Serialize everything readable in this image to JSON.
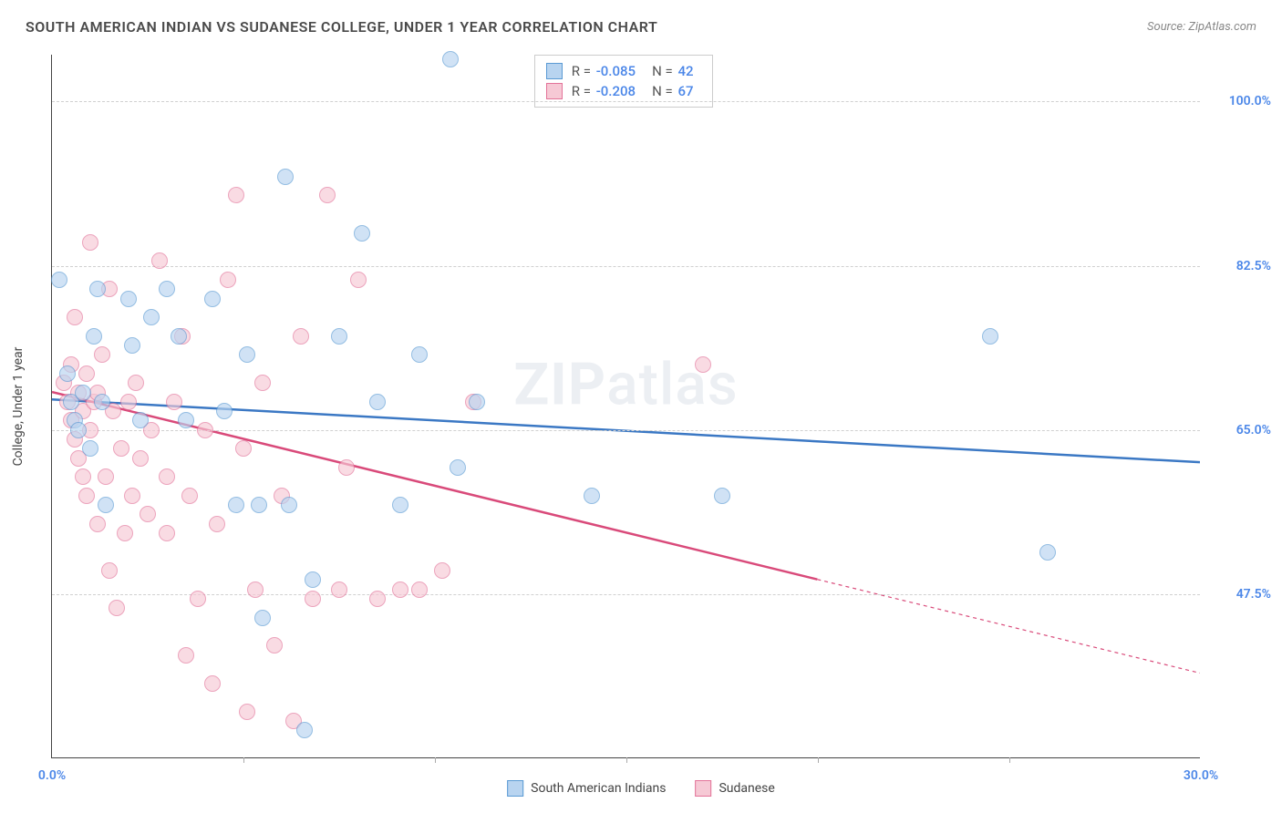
{
  "title": "SOUTH AMERICAN INDIAN VS SUDANESE COLLEGE, UNDER 1 YEAR CORRELATION CHART",
  "source": "Source: ZipAtlas.com",
  "y_axis_label": "College, Under 1 year",
  "watermark_strong": "ZIP",
  "watermark_light": "atlas",
  "chart": {
    "type": "scatter",
    "xlim": [
      0,
      30
    ],
    "ylim": [
      30,
      105
    ],
    "x_ticks": [
      0,
      30
    ],
    "x_tick_labels": [
      "0.0%",
      "30.0%"
    ],
    "x_minor_ticks": [
      5,
      10,
      15,
      20,
      25
    ],
    "y_ticks": [
      47.5,
      65.0,
      82.5,
      100.0
    ],
    "y_tick_labels": [
      "47.5%",
      "65.0%",
      "82.5%",
      "100.0%"
    ],
    "marker_radius": 9,
    "background_color": "#ffffff",
    "grid_color": "#d0d0d0",
    "axis_color": "#444444",
    "tick_label_color": "#4a86e8",
    "series": [
      {
        "name": "South American Indians",
        "fill": "#b8d4f0",
        "stroke": "#5a9ad4",
        "line_color": "#3b78c4",
        "line_width": 2.5,
        "R": "-0.085",
        "N": "42",
        "regression": {
          "x0": 0,
          "y0": 68.2,
          "x1": 30,
          "y1": 61.5,
          "solid_to_x": 30
        },
        "points": [
          [
            10.4,
            104.5
          ],
          [
            0.2,
            81
          ],
          [
            0.4,
            71
          ],
          [
            0.5,
            68
          ],
          [
            0.6,
            66
          ],
          [
            0.7,
            65
          ],
          [
            0.8,
            69
          ],
          [
            1.0,
            63
          ],
          [
            1.1,
            75
          ],
          [
            1.2,
            80
          ],
          [
            1.3,
            68
          ],
          [
            1.4,
            57
          ],
          [
            2.0,
            79
          ],
          [
            2.1,
            74
          ],
          [
            2.3,
            66
          ],
          [
            2.6,
            77
          ],
          [
            3.0,
            80
          ],
          [
            3.3,
            75
          ],
          [
            3.5,
            66
          ],
          [
            4.2,
            79
          ],
          [
            4.5,
            67
          ],
          [
            4.8,
            57
          ],
          [
            5.1,
            73
          ],
          [
            5.4,
            57
          ],
          [
            5.5,
            45
          ],
          [
            6.1,
            92
          ],
          [
            6.2,
            57
          ],
          [
            6.6,
            33
          ],
          [
            6.8,
            49
          ],
          [
            7.5,
            75
          ],
          [
            8.1,
            86
          ],
          [
            8.5,
            68
          ],
          [
            9.1,
            57
          ],
          [
            9.6,
            73
          ],
          [
            10.6,
            61
          ],
          [
            11.1,
            68
          ],
          [
            14.1,
            58
          ],
          [
            17.5,
            58
          ],
          [
            24.5,
            75
          ],
          [
            26.0,
            52
          ]
        ]
      },
      {
        "name": "Sudanese",
        "fill": "#f6c9d5",
        "stroke": "#e37399",
        "line_color": "#d94a7a",
        "line_width": 2.5,
        "R": "-0.208",
        "N": "67",
        "regression": {
          "x0": 0,
          "y0": 69.0,
          "x1": 30,
          "y1": 39.0,
          "solid_to_x": 20
        },
        "points": [
          [
            0.3,
            70
          ],
          [
            0.4,
            68
          ],
          [
            0.5,
            66
          ],
          [
            0.5,
            72
          ],
          [
            0.6,
            64
          ],
          [
            0.6,
            77
          ],
          [
            0.7,
            62
          ],
          [
            0.7,
            69
          ],
          [
            0.8,
            67
          ],
          [
            0.8,
            60
          ],
          [
            0.9,
            71
          ],
          [
            0.9,
            58
          ],
          [
            1.0,
            85
          ],
          [
            1.0,
            65
          ],
          [
            1.1,
            68
          ],
          [
            1.2,
            55
          ],
          [
            1.2,
            69
          ],
          [
            1.3,
            73
          ],
          [
            1.4,
            60
          ],
          [
            1.5,
            80
          ],
          [
            1.5,
            50
          ],
          [
            1.6,
            67
          ],
          [
            1.7,
            46
          ],
          [
            1.8,
            63
          ],
          [
            1.9,
            54
          ],
          [
            2.0,
            68
          ],
          [
            2.1,
            58
          ],
          [
            2.2,
            70
          ],
          [
            2.3,
            62
          ],
          [
            2.5,
            56
          ],
          [
            2.6,
            65
          ],
          [
            2.8,
            83
          ],
          [
            3.0,
            60
          ],
          [
            3.0,
            54
          ],
          [
            3.2,
            68
          ],
          [
            3.4,
            75
          ],
          [
            3.5,
            41
          ],
          [
            3.6,
            58
          ],
          [
            3.8,
            47
          ],
          [
            4.0,
            65
          ],
          [
            4.2,
            38
          ],
          [
            4.3,
            55
          ],
          [
            4.6,
            81
          ],
          [
            4.8,
            90
          ],
          [
            5.0,
            63
          ],
          [
            5.1,
            35
          ],
          [
            5.3,
            48
          ],
          [
            5.5,
            70
          ],
          [
            5.8,
            42
          ],
          [
            6.0,
            58
          ],
          [
            6.3,
            34
          ],
          [
            6.5,
            75
          ],
          [
            6.8,
            47
          ],
          [
            7.2,
            90
          ],
          [
            7.5,
            48
          ],
          [
            7.7,
            61
          ],
          [
            8.0,
            81
          ],
          [
            8.5,
            47
          ],
          [
            9.1,
            48
          ],
          [
            9.6,
            48
          ],
          [
            10.2,
            50
          ],
          [
            11.0,
            68
          ],
          [
            17.0,
            72
          ]
        ]
      }
    ]
  },
  "legend_bottom": [
    {
      "label": "South American Indians",
      "fill": "#b8d4f0",
      "stroke": "#5a9ad4"
    },
    {
      "label": "Sudanese",
      "fill": "#f6c9d5",
      "stroke": "#e37399"
    }
  ]
}
